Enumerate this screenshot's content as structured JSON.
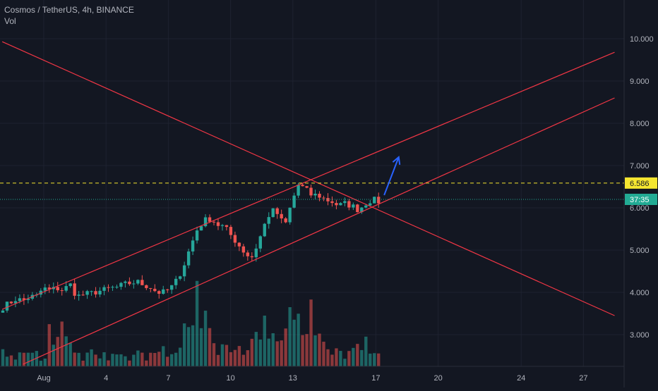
{
  "header": {
    "symbol_line": "Cosmos / TetherUS, 4h, BINANCE",
    "indicator_label": "Vol"
  },
  "price_axis": {
    "tick_labels": [
      "10.000",
      "9.000",
      "8.000",
      "7.000",
      "6.000",
      "5.000",
      "4.000",
      "3.000"
    ],
    "resistance_label": "6.586",
    "countdown_label": "37:35"
  },
  "time_axis": {
    "tick_labels": [
      "Aug",
      "4",
      "7",
      "10",
      "13",
      "17",
      "20",
      "24",
      "27"
    ]
  },
  "colors": {
    "background": "#131722",
    "up": "#26a69a",
    "down": "#ef5350",
    "trendline": "#f23645",
    "resistance": "#f5e630",
    "current_price": "#22ab94",
    "arrow": "#2962ff"
  },
  "chart_data": {
    "type": "candlestick",
    "title": "Cosmos / TetherUS, 4h, BINANCE",
    "x_unit": "date (Jul 30 – Aug 28)",
    "ylim": [
      2.3,
      10.7
    ],
    "x_ticks": [
      {
        "label": "Aug",
        "day": 1
      },
      {
        "label": "4",
        "day": 4
      },
      {
        "label": "7",
        "day": 7
      },
      {
        "label": "10",
        "day": 10
      },
      {
        "label": "13",
        "day": 13
      },
      {
        "label": "17",
        "day": 17
      },
      {
        "label": "20",
        "day": 20
      },
      {
        "label": "24",
        "day": 24
      },
      {
        "label": "27",
        "day": 27
      }
    ],
    "y_ticks": [
      10,
      9,
      8,
      7,
      6,
      5,
      4,
      3
    ],
    "resistance_level": 6.586,
    "current_price_level": 6.2,
    "trendlines": [
      {
        "name": "descending",
        "from": {
          "day": 30,
          "price": 9.93
        },
        "to": {
          "day": 59.5,
          "price": 3.45
        }
      },
      {
        "name": "channel-upper",
        "from": {
          "day": 30,
          "price": 3.6
        },
        "to": {
          "day": 59.5,
          "price": 9.68
        }
      },
      {
        "name": "channel-lower",
        "from": {
          "day": 31,
          "price": 2.3
        },
        "to": {
          "day": 59.5,
          "price": 8.6
        }
      }
    ],
    "projection_arrow": {
      "from": {
        "day": 17.4,
        "price": 6.3
      },
      "to": {
        "day": 18.1,
        "price": 7.2
      }
    },
    "anchors": [
      [
        0,
        3.65
      ],
      [
        1,
        3.75
      ],
      [
        2,
        3.85
      ],
      [
        3,
        3.8
      ],
      [
        4,
        3.9
      ],
      [
        5,
        3.9
      ],
      [
        6,
        4.1
      ],
      [
        7,
        4.05
      ],
      [
        8,
        4.1
      ],
      [
        9,
        4.05
      ],
      [
        10,
        4.2
      ],
      [
        11,
        3.9
      ],
      [
        12,
        3.95
      ],
      [
        13,
        3.97
      ],
      [
        14,
        4.02
      ],
      [
        15,
        4.05
      ],
      [
        16,
        4.1
      ],
      [
        17,
        4.12
      ],
      [
        18,
        4.18
      ],
      [
        19,
        4.22
      ],
      [
        20,
        4.25
      ],
      [
        21,
        4.18
      ],
      [
        22,
        4.12
      ],
      [
        23,
        4.0
      ],
      [
        24,
        4.0
      ],
      [
        25,
        4.1
      ],
      [
        26,
        4.3
      ],
      [
        27,
        4.65
      ],
      [
        28,
        5.1
      ],
      [
        29,
        5.5
      ],
      [
        30,
        5.7
      ],
      [
        31,
        5.75
      ],
      [
        32,
        5.6
      ],
      [
        33,
        5.55
      ],
      [
        34,
        5.35
      ],
      [
        35,
        5.15
      ],
      [
        36,
        4.95
      ],
      [
        37,
        4.8
      ],
      [
        38,
        5.15
      ],
      [
        39,
        5.6
      ],
      [
        40,
        5.95
      ],
      [
        41,
        5.85
      ],
      [
        42,
        5.55
      ],
      [
        43,
        6.1
      ],
      [
        44,
        6.55
      ],
      [
        45,
        6.45
      ],
      [
        46,
        6.3
      ],
      [
        47,
        6.3
      ],
      [
        48,
        6.2
      ],
      [
        49,
        6.15
      ],
      [
        50,
        6.05
      ],
      [
        51,
        6.1
      ],
      [
        52,
        6.05
      ],
      [
        53,
        5.95
      ],
      [
        54,
        6.1
      ],
      [
        55,
        6.2
      ],
      [
        56,
        6.15
      ]
    ],
    "volume_peaks": [
      [
        0,
        0.18
      ],
      [
        5,
        0.16
      ],
      [
        7,
        0.5
      ],
      [
        8,
        0.35
      ],
      [
        9,
        0.55
      ],
      [
        10,
        0.25
      ],
      [
        11,
        0.15
      ],
      [
        13,
        0.2
      ],
      [
        15,
        0.14
      ],
      [
        20,
        0.16
      ],
      [
        24,
        0.2
      ],
      [
        27,
        0.45
      ],
      [
        28,
        0.6
      ],
      [
        29,
        0.95
      ],
      [
        30,
        0.7
      ],
      [
        31,
        0.45
      ],
      [
        33,
        0.3
      ],
      [
        35,
        0.28
      ],
      [
        37,
        0.3
      ],
      [
        38,
        0.45
      ],
      [
        39,
        0.55
      ],
      [
        40,
        0.45
      ],
      [
        41,
        0.3
      ],
      [
        42,
        0.45
      ],
      [
        43,
        0.82
      ],
      [
        44,
        0.6
      ],
      [
        45,
        0.5
      ],
      [
        46,
        0.75
      ],
      [
        47,
        0.4
      ],
      [
        48,
        0.3
      ],
      [
        50,
        0.25
      ],
      [
        52,
        0.2
      ],
      [
        53,
        0.28
      ],
      [
        54,
        0.35
      ],
      [
        55,
        0.15
      ],
      [
        56,
        0.12
      ]
    ]
  }
}
